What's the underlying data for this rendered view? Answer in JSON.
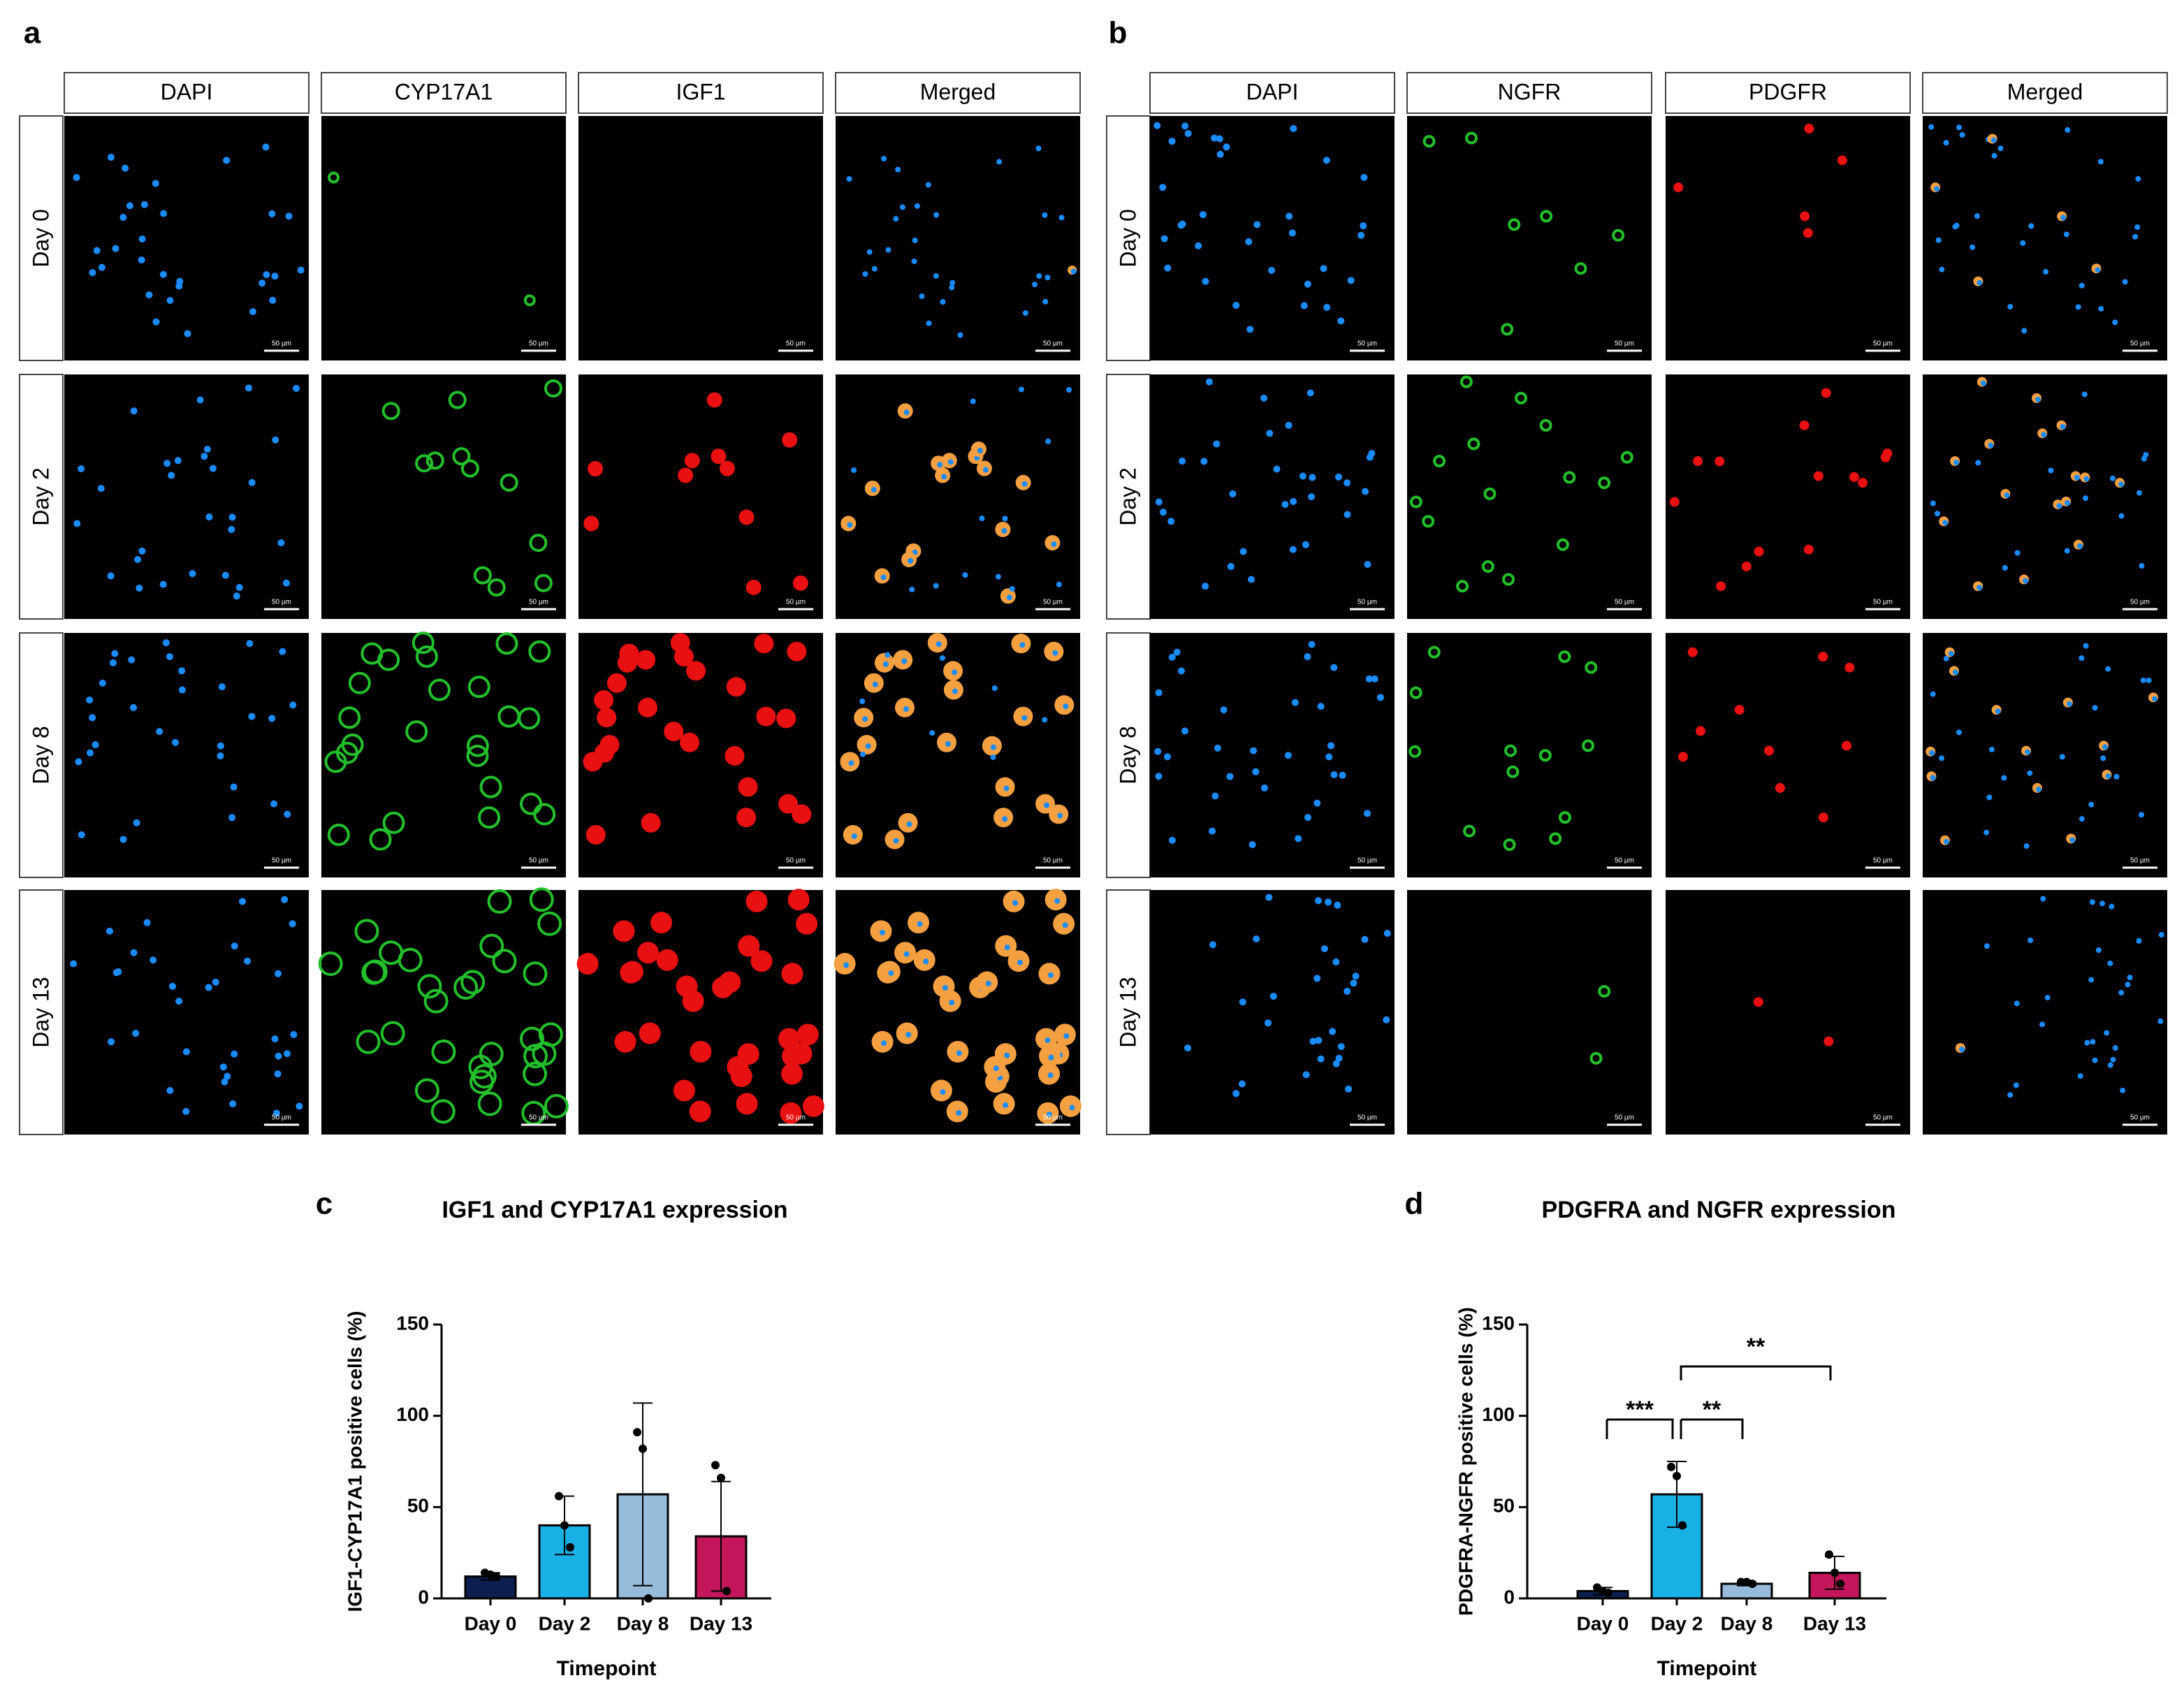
{
  "panels": [
    {
      "label": "a",
      "columns": [
        "DAPI",
        "CYP17A1",
        "IGF1",
        "Merged"
      ],
      "rows": [
        "Day 0",
        "Day 2",
        "Day 8",
        "Day 13"
      ],
      "scale_bar": "50 µm"
    },
    {
      "label": "b",
      "columns": [
        "DAPI",
        "NGFR",
        "PDGFR",
        "Merged"
      ],
      "rows": [
        "Day 0",
        "Day 2",
        "Day 8",
        "Day 13"
      ],
      "scale_bar": "50 µm"
    }
  ],
  "chart_data": [
    {
      "type": "bar",
      "panel_label": "c",
      "title": "IGF1 and CYP17A1 expression",
      "ylabel": "IGF1-CYP17A1 positive cells (%)",
      "xlabel": "Timepoint",
      "categories": [
        "Day 0",
        "Day 2",
        "Day 8",
        "Day 13"
      ],
      "values": [
        12,
        40,
        57,
        34
      ],
      "errors": [
        2,
        16,
        50,
        30
      ],
      "points": [
        [
          14,
          13,
          12
        ],
        [
          56,
          40,
          28
        ],
        [
          91,
          82,
          0
        ],
        [
          73,
          66,
          4
        ]
      ],
      "colors": [
        "#0c1f4e",
        "#19b0e6",
        "#96bbdb",
        "#c4165c"
      ],
      "ylim": [
        0,
        150
      ],
      "yticks": [
        0,
        50,
        100,
        150
      ],
      "significance": []
    },
    {
      "type": "bar",
      "panel_label": "d",
      "title": "PDGFRA and NGFR expression",
      "ylabel": "PDGFRA-NGFR positive cells (%)",
      "xlabel": "Timepoint",
      "categories": [
        "Day 0",
        "Day 2",
        "Day 8",
        "Day 13"
      ],
      "values": [
        4,
        57,
        8,
        14
      ],
      "errors": [
        2,
        18,
        1,
        9
      ],
      "points": [
        [
          6,
          4,
          3
        ],
        [
          72,
          67,
          40
        ],
        [
          9,
          9,
          8
        ],
        [
          24,
          14,
          8
        ]
      ],
      "colors": [
        "#0c1f4e",
        "#19b0e6",
        "#96bbdb",
        "#c4165c"
      ],
      "ylim": [
        0,
        150
      ],
      "yticks": [
        0,
        50,
        100,
        150
      ],
      "significance": [
        {
          "from": 0,
          "to": 1,
          "label": "***"
        },
        {
          "from": 1,
          "to": 2,
          "label": "**"
        },
        {
          "from": 1,
          "to": 3,
          "label": "**"
        }
      ]
    }
  ]
}
